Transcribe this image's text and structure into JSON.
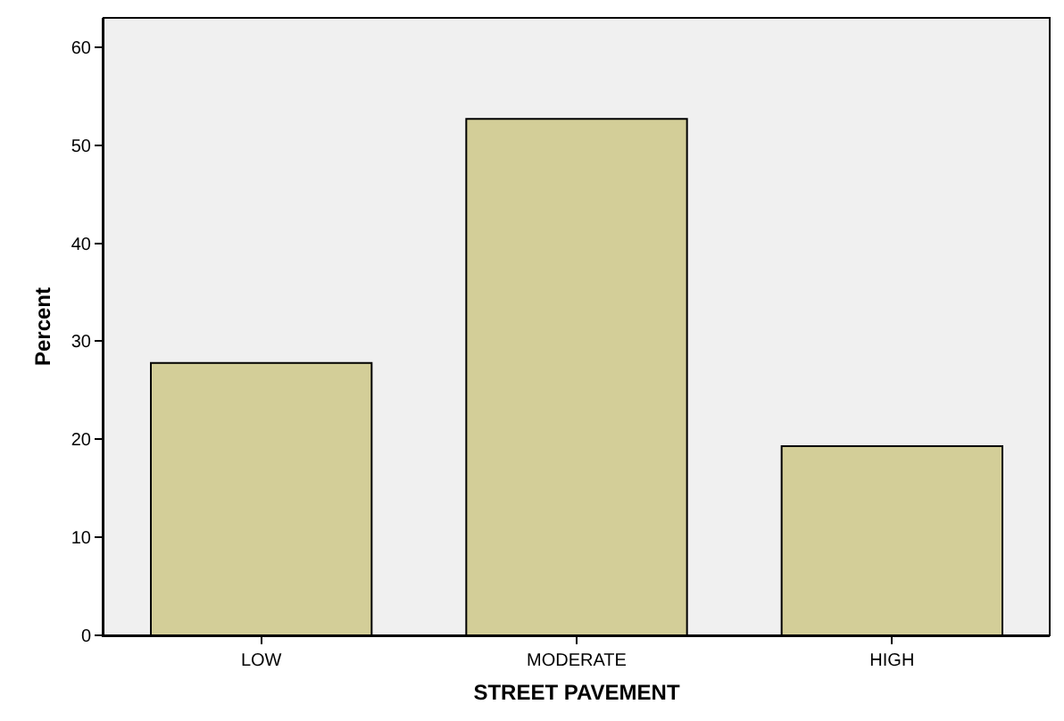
{
  "chart_data": {
    "type": "bar",
    "xlabel": "STREET PAVEMENT",
    "ylabel": "Percent",
    "categories": [
      "LOW",
      "MODERATE",
      "HIGH"
    ],
    "values": [
      27.8,
      52.7,
      19.3
    ],
    "color": "#d3ce98",
    "ylim": [
      0,
      63
    ],
    "yticks": [
      0,
      10,
      20,
      30,
      40,
      50,
      60
    ],
    "grid": false
  }
}
